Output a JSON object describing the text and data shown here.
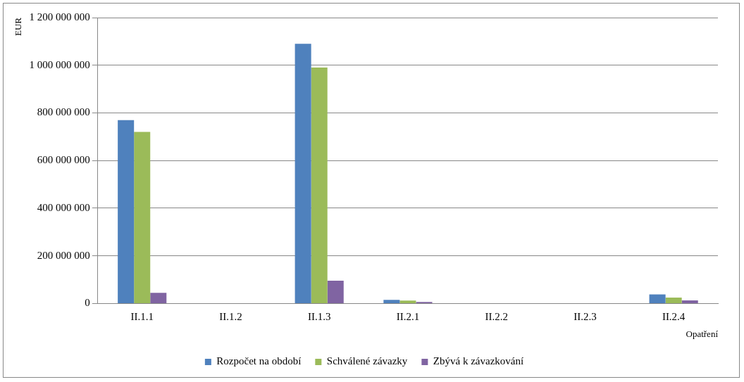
{
  "chart_data": {
    "type": "bar",
    "ylabel": "EUR",
    "xlabel": "Opatření",
    "categories": [
      "II.1.1",
      "II.1.2",
      "II.1.3",
      "II.2.1",
      "II.2.2",
      "II.2.3",
      "II.2.4"
    ],
    "series": [
      {
        "name": "Rozpočet na období",
        "color": "#4f81bd",
        "values": [
          770000000,
          0,
          1090000000,
          15000000,
          0,
          0,
          38000000
        ]
      },
      {
        "name": "Schválené závazky",
        "color": "#9bbb59",
        "values": [
          720000000,
          0,
          990000000,
          12000000,
          0,
          0,
          25000000
        ]
      },
      {
        "name": "Zbývá k závazkování",
        "color": "#8064a2",
        "values": [
          45000000,
          0,
          96000000,
          6000000,
          0,
          0,
          13000000
        ]
      }
    ],
    "ylim": [
      0,
      1200000000
    ],
    "yticks": [
      0,
      {
        "value": 200000000,
        "label": "200 000 000"
      },
      {
        "value": 400000000,
        "label": "400 000 000"
      },
      {
        "value": 600000000,
        "label": "600 000 000"
      },
      {
        "value": 800000000,
        "label": "800 000 000"
      },
      {
        "value": 1000000000,
        "label": "1 000 000 000"
      },
      {
        "value": 1200000000,
        "label": "1 200 000 000"
      }
    ],
    "grid": "y",
    "legend": "bottom"
  }
}
